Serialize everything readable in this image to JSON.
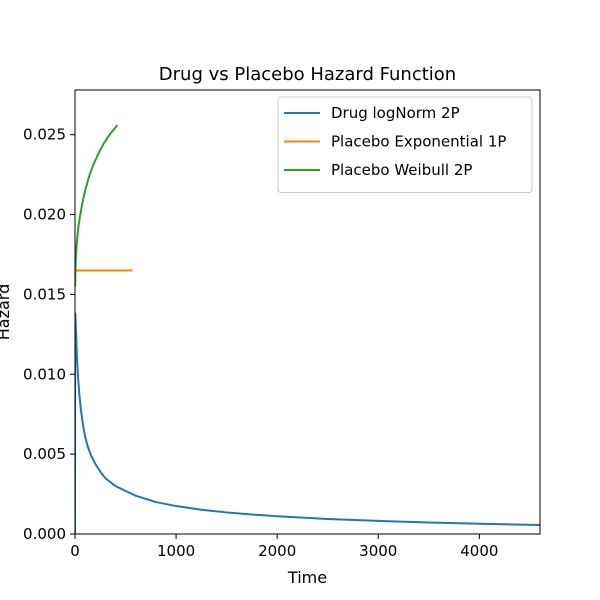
{
  "chart_data": {
    "type": "line",
    "title": "Drug vs Placebo Hazard Function",
    "xlabel": "Time",
    "ylabel": "Hazard",
    "xlim": [
      0,
      4600
    ],
    "ylim": [
      0,
      0.0278
    ],
    "xticks": [
      0,
      1000,
      2000,
      3000,
      4000
    ],
    "xtick_labels": [
      "0",
      "1000",
      "2000",
      "3000",
      "4000"
    ],
    "yticks": [
      0,
      0.005,
      0.01,
      0.015,
      0.02,
      0.025
    ],
    "ytick_labels": [
      "0.000",
      "0.005",
      "0.010",
      "0.015",
      "0.020",
      "0.025"
    ],
    "grid": false,
    "legend_position": "top-right",
    "series": [
      {
        "name": "Drug logNorm 2P",
        "color": "#1f77b4",
        "x": [
          0,
          1,
          3,
          6,
          10,
          15,
          20,
          30,
          45,
          60,
          80,
          100,
          130,
          160,
          200,
          250,
          300,
          400,
          500,
          600,
          800,
          1000,
          1250,
          1500,
          1750,
          2000,
          2500,
          3000,
          3500,
          4000,
          4600
        ],
        "y": [
          0.0,
          0.0112,
          0.0138,
          0.0134,
          0.0127,
          0.0118,
          0.011,
          0.0098,
          0.0086,
          0.0077,
          0.0068,
          0.0061,
          0.0054,
          0.0049,
          0.0044,
          0.0039,
          0.0035,
          0.003,
          0.0027,
          0.0024,
          0.002,
          0.00175,
          0.00152,
          0.00135,
          0.00122,
          0.00111,
          0.00094,
          0.00082,
          0.00072,
          0.00064,
          0.00056
        ]
      },
      {
        "name": "Placebo Exponential 1P",
        "color": "#ff7f0e",
        "x": [
          0,
          570
        ],
        "y": [
          0.0165,
          0.0165
        ]
      },
      {
        "name": "Placebo Weibull 2P",
        "color": "#2ca02c",
        "x": [
          1,
          5,
          10,
          20,
          35,
          50,
          75,
          100,
          140,
          180,
          230,
          280,
          330,
          380,
          420
        ],
        "y": [
          0.0155,
          0.0168,
          0.0175,
          0.0184,
          0.0193,
          0.0199,
          0.0208,
          0.0215,
          0.0224,
          0.0231,
          0.0238,
          0.0244,
          0.0249,
          0.0253,
          0.0256
        ]
      }
    ]
  }
}
